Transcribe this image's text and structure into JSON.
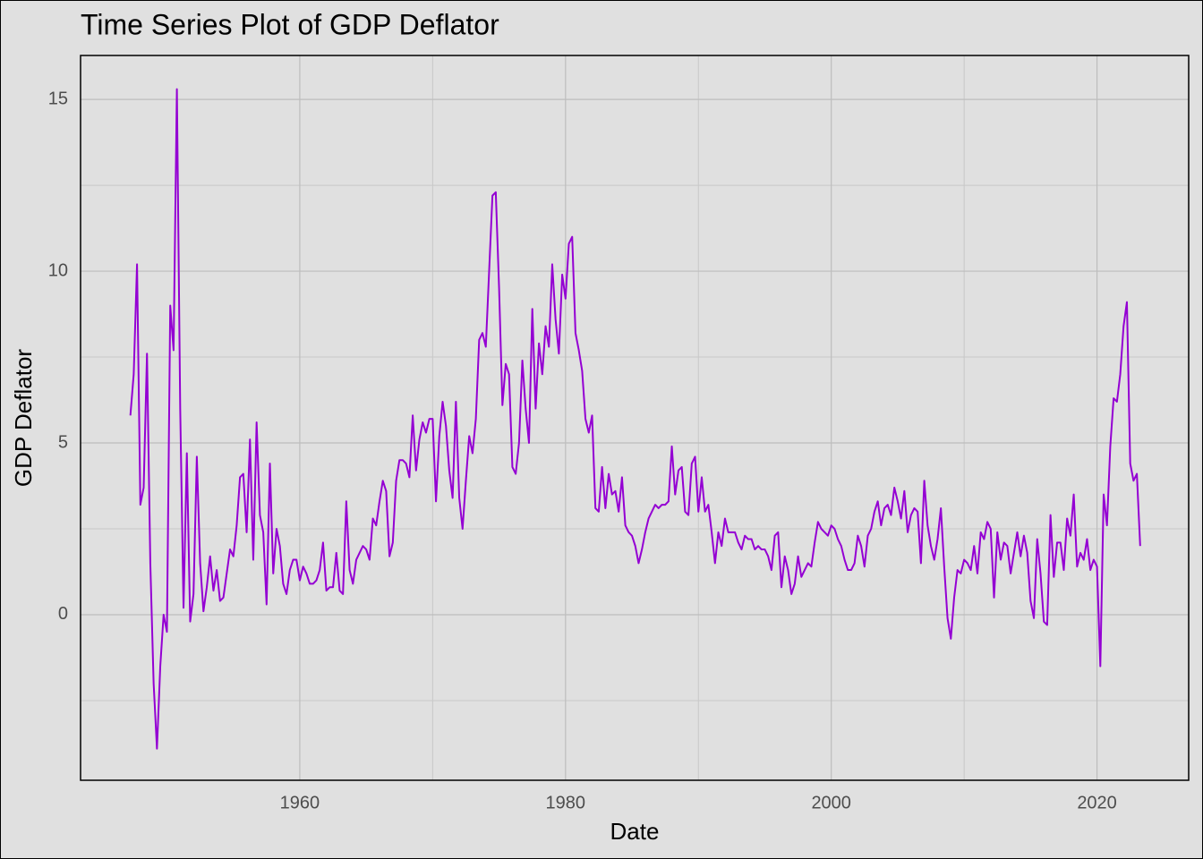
{
  "chart_data": {
    "type": "line",
    "title": "Time Series Plot of GDP Deflator",
    "x_label": "Date",
    "y_label": "GDP Deflator",
    "xlim": [
      1943.5,
      2026.9
    ],
    "xticks": [
      1960,
      1980,
      2000,
      2020
    ],
    "xminor": [
      1970,
      1990,
      2010
    ],
    "ylim": [
      -4.82,
      16.28
    ],
    "yticks": [
      0,
      5,
      10,
      15
    ],
    "yminor": [
      -2.5,
      2.5,
      7.5,
      12.5
    ],
    "grid": true,
    "x": [
      1947.25,
      1947.5,
      1947.75,
      1948,
      1948.25,
      1948.5,
      1948.75,
      1949,
      1949.25,
      1949.5,
      1949.75,
      1950,
      1950.25,
      1950.5,
      1950.75,
      1951,
      1951.25,
      1951.5,
      1951.75,
      1952,
      1952.25,
      1952.5,
      1952.75,
      1953,
      1953.25,
      1953.5,
      1953.75,
      1954,
      1954.25,
      1954.5,
      1954.75,
      1955,
      1955.25,
      1955.5,
      1955.75,
      1956,
      1956.25,
      1956.5,
      1956.75,
      1957,
      1957.25,
      1957.5,
      1957.75,
      1958,
      1958.25,
      1958.5,
      1958.75,
      1959,
      1959.25,
      1959.5,
      1959.75,
      1960,
      1960.25,
      1960.5,
      1960.75,
      1961,
      1961.25,
      1961.5,
      1961.75,
      1962,
      1962.25,
      1962.5,
      1962.75,
      1963,
      1963.25,
      1963.5,
      1963.75,
      1964,
      1964.25,
      1964.5,
      1964.75,
      1965,
      1965.25,
      1965.5,
      1965.75,
      1966,
      1966.25,
      1966.5,
      1966.75,
      1967,
      1967.25,
      1967.5,
      1967.75,
      1968,
      1968.25,
      1968.5,
      1968.75,
      1969,
      1969.25,
      1969.5,
      1969.75,
      1970,
      1970.25,
      1970.5,
      1970.75,
      1971,
      1971.25,
      1971.5,
      1971.75,
      1972,
      1972.25,
      1972.5,
      1972.75,
      1973,
      1973.25,
      1973.5,
      1973.75,
      1974,
      1974.25,
      1974.5,
      1974.75,
      1975,
      1975.25,
      1975.5,
      1975.75,
      1976,
      1976.25,
      1976.5,
      1976.75,
      1977,
      1977.25,
      1977.5,
      1977.75,
      1978,
      1978.25,
      1978.5,
      1978.75,
      1979,
      1979.25,
      1979.5,
      1979.75,
      1980,
      1980.25,
      1980.5,
      1980.75,
      1981,
      1981.25,
      1981.5,
      1981.75,
      1982,
      1982.25,
      1982.5,
      1982.75,
      1983,
      1983.25,
      1983.5,
      1983.75,
      1984,
      1984.25,
      1984.5,
      1984.75,
      1985,
      1985.25,
      1985.5,
      1985.75,
      1986,
      1986.25,
      1986.5,
      1986.75,
      1987,
      1987.25,
      1987.5,
      1987.75,
      1988,
      1988.25,
      1988.5,
      1988.75,
      1989,
      1989.25,
      1989.5,
      1989.75,
      1990,
      1990.25,
      1990.5,
      1990.75,
      1991,
      1991.25,
      1991.5,
      1991.75,
      1992,
      1992.25,
      1992.5,
      1992.75,
      1993,
      1993.25,
      1993.5,
      1993.75,
      1994,
      1994.25,
      1994.5,
      1994.75,
      1995,
      1995.25,
      1995.5,
      1995.75,
      1996,
      1996.25,
      1996.5,
      1996.75,
      1997,
      1997.25,
      1997.5,
      1997.75,
      1998,
      1998.25,
      1998.5,
      1998.75,
      1999,
      1999.25,
      1999.5,
      1999.75,
      2000,
      2000.25,
      2000.5,
      2000.75,
      2001,
      2001.25,
      2001.5,
      2001.75,
      2002,
      2002.25,
      2002.5,
      2002.75,
      2003,
      2003.25,
      2003.5,
      2003.75,
      2004,
      2004.25,
      2004.5,
      2004.75,
      2005,
      2005.25,
      2005.5,
      2005.75,
      2006,
      2006.25,
      2006.5,
      2006.75,
      2007,
      2007.25,
      2007.5,
      2007.75,
      2008,
      2008.25,
      2008.5,
      2008.75,
      2009,
      2009.25,
      2009.5,
      2009.75,
      2010,
      2010.25,
      2010.5,
      2010.75,
      2011,
      2011.25,
      2011.5,
      2011.75,
      2012,
      2012.25,
      2012.5,
      2012.75,
      2013,
      2013.25,
      2013.5,
      2013.75,
      2014,
      2014.25,
      2014.5,
      2014.75,
      2015,
      2015.25,
      2015.5,
      2015.75,
      2016,
      2016.25,
      2016.5,
      2016.75,
      2017,
      2017.25,
      2017.5,
      2017.75,
      2018,
      2018.25,
      2018.5,
      2018.75,
      2019,
      2019.25,
      2019.5,
      2019.75,
      2020,
      2020.25,
      2020.5,
      2020.75,
      2021,
      2021.25,
      2021.5,
      2021.75,
      2022,
      2022.25,
      2022.5,
      2022.75,
      2023,
      2023.25
    ],
    "series": [
      {
        "name": "GDP Deflator",
        "color": "#9400d3",
        "values": [
          5.8,
          7.0,
          10.2,
          3.2,
          3.7,
          7.6,
          1.5,
          -2.0,
          -3.9,
          -1.5,
          0.0,
          -0.5,
          9.0,
          7.7,
          15.3,
          6.0,
          0.2,
          4.7,
          -0.2,
          0.6,
          4.6,
          1.5,
          0.1,
          0.8,
          1.7,
          0.7,
          1.3,
          0.4,
          0.5,
          1.2,
          1.9,
          1.7,
          2.6,
          4.0,
          4.1,
          2.4,
          5.1,
          1.6,
          5.6,
          2.9,
          2.4,
          0.3,
          4.4,
          1.2,
          2.5,
          2.0,
          0.9,
          0.6,
          1.3,
          1.6,
          1.6,
          1.0,
          1.4,
          1.2,
          0.9,
          0.9,
          1.0,
          1.3,
          2.1,
          0.7,
          0.8,
          0.8,
          1.8,
          0.7,
          0.6,
          3.3,
          1.3,
          0.9,
          1.6,
          1.8,
          2.0,
          1.9,
          1.6,
          2.8,
          2.6,
          3.3,
          3.9,
          3.6,
          1.7,
          2.1,
          3.9,
          4.5,
          4.5,
          4.4,
          4.0,
          5.8,
          4.2,
          5.1,
          5.6,
          5.3,
          5.7,
          5.7,
          3.3,
          5.2,
          6.2,
          5.5,
          4.2,
          3.4,
          6.2,
          3.4,
          2.5,
          3.9,
          5.2,
          4.7,
          5.7,
          8.0,
          8.2,
          7.8,
          10.0,
          12.2,
          12.3,
          9.5,
          6.1,
          7.3,
          7.0,
          4.3,
          4.1,
          5.0,
          7.4,
          6.0,
          5.0,
          8.9,
          6.0,
          7.9,
          7.0,
          8.4,
          7.8,
          10.2,
          8.6,
          7.6,
          9.9,
          9.2,
          10.8,
          11.0,
          8.2,
          7.7,
          7.1,
          5.7,
          5.3,
          5.8,
          3.1,
          3.0,
          4.3,
          3.1,
          4.1,
          3.5,
          3.6,
          3.0,
          4.0,
          2.6,
          2.4,
          2.3,
          2.0,
          1.5,
          1.9,
          2.4,
          2.8,
          3.0,
          3.2,
          3.1,
          3.2,
          3.2,
          3.3,
          4.9,
          3.5,
          4.2,
          4.3,
          3.0,
          2.9,
          4.4,
          4.6,
          3.0,
          4.0,
          3.0,
          3.2,
          2.4,
          1.5,
          2.4,
          2.0,
          2.8,
          2.4,
          2.4,
          2.4,
          2.1,
          1.9,
          2.3,
          2.2,
          2.2,
          1.9,
          2.0,
          1.9,
          1.9,
          1.7,
          1.3,
          2.3,
          2.4,
          0.8,
          1.7,
          1.3,
          0.6,
          0.9,
          1.7,
          1.1,
          1.3,
          1.5,
          1.4,
          2.1,
          2.7,
          2.5,
          2.4,
          2.3,
          2.6,
          2.5,
          2.2,
          2.0,
          1.6,
          1.3,
          1.3,
          1.5,
          2.3,
          2.0,
          1.4,
          2.3,
          2.5,
          3.0,
          3.3,
          2.6,
          3.1,
          3.2,
          2.9,
          3.7,
          3.3,
          2.8,
          3.6,
          2.4,
          2.9,
          3.1,
          3.0,
          1.5,
          3.9,
          2.6,
          2.0,
          1.6,
          2.2,
          3.1,
          1.4,
          -0.1,
          -0.7,
          0.5,
          1.3,
          1.2,
          1.6,
          1.5,
          1.3,
          2.0,
          1.2,
          2.4,
          2.2,
          2.7,
          2.5,
          0.5,
          2.4,
          1.6,
          2.1,
          2.0,
          1.2,
          1.8,
          2.4,
          1.7,
          2.3,
          1.8,
          0.4,
          -0.1,
          2.2,
          1.2,
          -0.2,
          -0.3,
          2.9,
          1.1,
          2.1,
          2.1,
          1.3,
          2.8,
          2.3,
          3.5,
          1.4,
          1.8,
          1.6,
          2.2,
          1.3,
          1.6,
          1.4,
          -1.5,
          3.5,
          2.6,
          4.9,
          6.3,
          6.2,
          7.0,
          8.4,
          9.1,
          4.4,
          3.9,
          4.1,
          2.0
        ]
      }
    ]
  }
}
